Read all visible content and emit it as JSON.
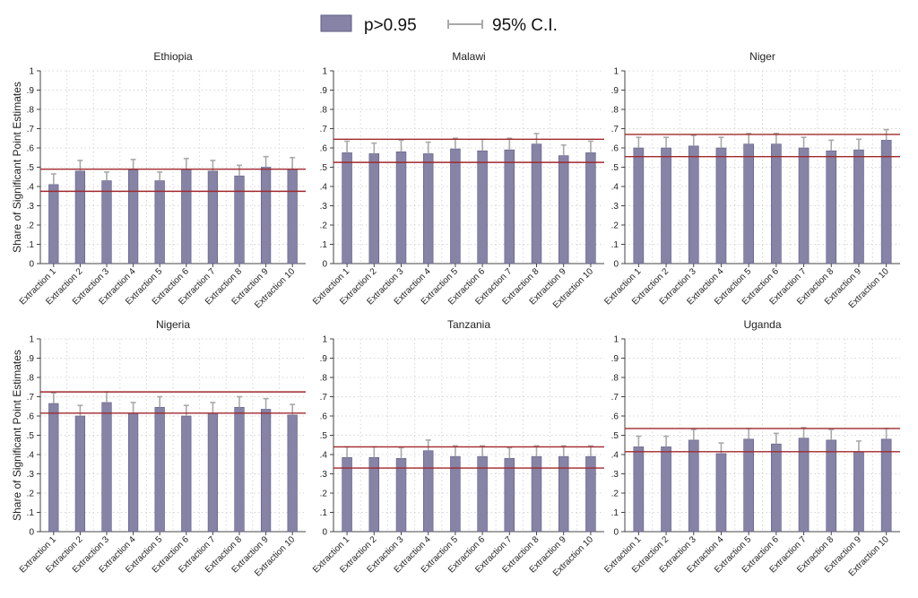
{
  "legend": {
    "bar_label": "p>0.95",
    "ci_label": "95% C.I."
  },
  "colors": {
    "bar": "#8683a6",
    "bar_edge": "#5f5c85",
    "ci": "#a9a9a9",
    "reference_line": "#a0282d",
    "grid": "#d6d6d6",
    "axis": "#444444"
  },
  "chart_data": [
    {
      "type": "bar",
      "title": "Ethiopia",
      "ylabel": "Share of Significant Point Estimates",
      "xlabel": "",
      "ylim": [
        0,
        1
      ],
      "yticks": [
        "0",
        ".1",
        ".2",
        ".3",
        ".4",
        ".5",
        ".6",
        ".7",
        ".8",
        ".9",
        "1"
      ],
      "grid": true,
      "legend_position": "top",
      "categories": [
        "Extraction 1",
        "Extraction 2",
        "Extraction 3",
        "Extraction 4",
        "Extraction 5",
        "Extraction 6",
        "Extraction 7",
        "Extraction 8",
        "Extraction 9",
        "Extraction 10"
      ],
      "values": [
        0.41,
        0.48,
        0.43,
        0.485,
        0.43,
        0.49,
        0.48,
        0.455,
        0.5,
        0.49
      ],
      "ci_upper": [
        0.465,
        0.535,
        0.475,
        0.54,
        0.475,
        0.545,
        0.535,
        0.51,
        0.555,
        0.55
      ],
      "reference_lines": [
        0.375,
        0.49
      ]
    },
    {
      "type": "bar",
      "title": "Malawi",
      "ylabel": "",
      "xlabel": "",
      "ylim": [
        0,
        1
      ],
      "yticks": [
        "0",
        ".1",
        ".2",
        ".3",
        ".4",
        ".5",
        ".6",
        ".7",
        ".8",
        ".9",
        "1"
      ],
      "grid": true,
      "categories": [
        "Extraction 1",
        "Extraction 2",
        "Extraction 3",
        "Extraction 4",
        "Extraction 5",
        "Extraction 6",
        "Extraction 7",
        "Extraction 8",
        "Extraction 9",
        "Extraction 10"
      ],
      "values": [
        0.575,
        0.57,
        0.58,
        0.57,
        0.595,
        0.585,
        0.59,
        0.62,
        0.56,
        0.575
      ],
      "ci_upper": [
        0.635,
        0.625,
        0.64,
        0.63,
        0.65,
        0.645,
        0.65,
        0.675,
        0.615,
        0.635
      ],
      "reference_lines": [
        0.525,
        0.645
      ]
    },
    {
      "type": "bar",
      "title": "Niger",
      "ylabel": "",
      "xlabel": "",
      "ylim": [
        0,
        1
      ],
      "yticks": [
        "0",
        ".1",
        ".2",
        ".3",
        ".4",
        ".5",
        ".6",
        ".7",
        ".8",
        ".9",
        "1"
      ],
      "grid": true,
      "categories": [
        "Extraction 1",
        "Extraction 2",
        "Extraction 3",
        "Extraction 4",
        "Extraction 5",
        "Extraction 6",
        "Extraction 7",
        "Extraction 8",
        "Extraction 9",
        "Extraction 10"
      ],
      "values": [
        0.6,
        0.6,
        0.61,
        0.6,
        0.62,
        0.62,
        0.6,
        0.585,
        0.59,
        0.64
      ],
      "ci_upper": [
        0.655,
        0.655,
        0.665,
        0.655,
        0.675,
        0.675,
        0.655,
        0.64,
        0.645,
        0.695
      ],
      "reference_lines": [
        0.555,
        0.67
      ]
    },
    {
      "type": "bar",
      "title": "Nigeria",
      "ylabel": "Share of Significant Point Estimates",
      "xlabel": "",
      "ylim": [
        0,
        1
      ],
      "yticks": [
        "0",
        ".1",
        ".2",
        ".3",
        ".4",
        ".5",
        ".6",
        ".7",
        ".8",
        ".9",
        "1"
      ],
      "grid": true,
      "categories": [
        "Extraction 1",
        "Extraction 2",
        "Extraction 3",
        "Extraction 4",
        "Extraction 5",
        "Extraction 6",
        "Extraction 7",
        "Extraction 8",
        "Extraction 9",
        "Extraction 10"
      ],
      "values": [
        0.665,
        0.6,
        0.67,
        0.615,
        0.645,
        0.6,
        0.615,
        0.645,
        0.635,
        0.605
      ],
      "ci_upper": [
        0.72,
        0.655,
        0.725,
        0.67,
        0.7,
        0.655,
        0.67,
        0.7,
        0.69,
        0.66
      ],
      "reference_lines": [
        0.615,
        0.725
      ]
    },
    {
      "type": "bar",
      "title": "Tanzania",
      "ylabel": "",
      "xlabel": "",
      "ylim": [
        0,
        1
      ],
      "yticks": [
        "0",
        ".1",
        ".2",
        ".3",
        ".4",
        ".5",
        ".6",
        ".7",
        ".8",
        ".9",
        "1"
      ],
      "grid": true,
      "categories": [
        "Extraction 1",
        "Extraction 2",
        "Extraction 3",
        "Extraction 4",
        "Extraction 5",
        "Extraction 6",
        "Extraction 7",
        "Extraction 8",
        "Extraction 9",
        "Extraction 10"
      ],
      "values": [
        0.385,
        0.385,
        0.38,
        0.42,
        0.39,
        0.39,
        0.38,
        0.39,
        0.39,
        0.39
      ],
      "ci_upper": [
        0.44,
        0.44,
        0.435,
        0.475,
        0.445,
        0.445,
        0.435,
        0.445,
        0.445,
        0.445
      ],
      "reference_lines": [
        0.33,
        0.44
      ]
    },
    {
      "type": "bar",
      "title": "Uganda",
      "ylabel": "",
      "xlabel": "",
      "ylim": [
        0,
        1
      ],
      "yticks": [
        "0",
        ".1",
        ".2",
        ".3",
        ".4",
        ".5",
        ".6",
        ".7",
        ".8",
        ".9",
        "1"
      ],
      "grid": true,
      "categories": [
        "Extraction 1",
        "Extraction 2",
        "Extraction 3",
        "Extraction 4",
        "Extraction 5",
        "Extraction 6",
        "Extraction 7",
        "Extraction 8",
        "Extraction 9",
        "Extraction 10"
      ],
      "values": [
        0.44,
        0.44,
        0.475,
        0.405,
        0.48,
        0.455,
        0.485,
        0.475,
        0.415,
        0.48
      ],
      "ci_upper": [
        0.495,
        0.495,
        0.53,
        0.46,
        0.535,
        0.51,
        0.54,
        0.53,
        0.47,
        0.535
      ],
      "reference_lines": [
        0.415,
        0.535
      ]
    }
  ]
}
